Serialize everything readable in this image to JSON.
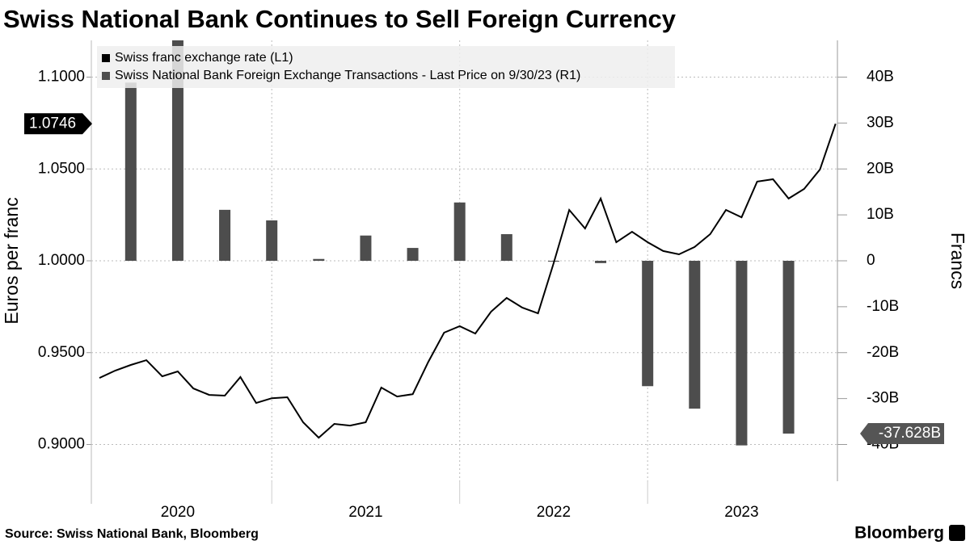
{
  "chart_data": {
    "type": "bar_line",
    "title": "Swiss National Bank Continues to Sell Foreign Currency",
    "ylabel": "Euros per franc",
    "y2label": "Francs",
    "source": "Source: Swiss National Bank, Bloomberg",
    "brand": "Bloomberg",
    "xlim": [
      2020.04,
      2024.01
    ],
    "xticks": [
      {
        "value": 2020.5,
        "label": "2020"
      },
      {
        "value": 2021.5,
        "label": "2021"
      },
      {
        "value": 2022.5,
        "label": "2022"
      },
      {
        "value": 2023.5,
        "label": "2023"
      }
    ],
    "x_gridlines": [
      2021,
      2022,
      2023
    ],
    "ylim": [
      0.88,
      1.12
    ],
    "yticks": [
      {
        "value": 0.9,
        "label": "0.9000"
      },
      {
        "value": 0.95,
        "label": "0.9500"
      },
      {
        "value": 1.0,
        "label": "1.0000"
      },
      {
        "value": 1.05,
        "label": "1.0500"
      },
      {
        "value": 1.1,
        "label": "1.1000"
      }
    ],
    "y2lim": [
      -48,
      48
    ],
    "y2ticks": [
      {
        "value": -40,
        "label": "-40B"
      },
      {
        "value": -30,
        "label": "-30B"
      },
      {
        "value": -20,
        "label": "-20B"
      },
      {
        "value": -10,
        "label": "-10B"
      },
      0,
      {
        "value": 10,
        "label": "10B"
      },
      {
        "value": 20,
        "label": "20B"
      },
      {
        "value": 30,
        "label": "30B"
      },
      {
        "value": 40,
        "label": "40B"
      }
    ],
    "grid": true,
    "legend": "top-left",
    "series": [
      {
        "name": "Swiss franc exchange rate (L1)",
        "type": "line",
        "color": "#000000",
        "last_value_label": "1.0746",
        "x": [
          2020.083,
          2020.167,
          2020.25,
          2020.333,
          2020.417,
          2020.5,
          2020.583,
          2020.667,
          2020.75,
          2020.833,
          2020.917,
          2021.0,
          2021.083,
          2021.167,
          2021.25,
          2021.333,
          2021.417,
          2021.5,
          2021.583,
          2021.667,
          2021.75,
          2021.833,
          2021.917,
          2022.0,
          2022.083,
          2022.167,
          2022.25,
          2022.333,
          2022.417,
          2022.5,
          2022.583,
          2022.667,
          2022.75,
          2022.833,
          2022.917,
          2023.0,
          2023.083,
          2023.167,
          2023.25,
          2023.333,
          2023.417,
          2023.5,
          2023.583,
          2023.667,
          2023.75,
          2023.833,
          2023.917,
          2024.0
        ],
        "values": [
          0.9362,
          0.9402,
          0.9433,
          0.9459,
          0.9371,
          0.9398,
          0.9305,
          0.927,
          0.9266,
          0.9367,
          0.9226,
          0.9252,
          0.9257,
          0.9121,
          0.9037,
          0.9112,
          0.9103,
          0.9121,
          0.931,
          0.9261,
          0.9274,
          0.945,
          0.9609,
          0.9644,
          0.9604,
          0.9723,
          0.9798,
          0.9745,
          0.9714,
          0.9987,
          1.0277,
          1.0176,
          1.0339,
          1.0101,
          1.0158,
          1.0101,
          1.0053,
          1.0035,
          1.0075,
          1.0145,
          1.0277,
          1.0237,
          1.0431,
          1.0444,
          1.0339,
          1.0391,
          1.0497,
          1.0746
        ]
      },
      {
        "name": "Swiss National Bank Foreign Exchange Transactions - Last Price on 9/30/23 (R1)",
        "type": "bar",
        "axis": "y2",
        "color": "#4d4d4d",
        "last_value_label": "-37.628B",
        "x": [
          2020.25,
          2020.5,
          2020.75,
          2021.0,
          2021.25,
          2021.5,
          2021.75,
          2022.0,
          2022.25,
          2022.5,
          2022.75,
          2023.0,
          2023.25,
          2023.5,
          2023.75
        ],
        "values": [
          38.8,
          49.6,
          11.1,
          8.8,
          0.4,
          5.5,
          2.8,
          12.7,
          5.8,
          0,
          -0.5,
          -27.3,
          -32.2,
          -40.2,
          -37.628
        ]
      }
    ]
  }
}
